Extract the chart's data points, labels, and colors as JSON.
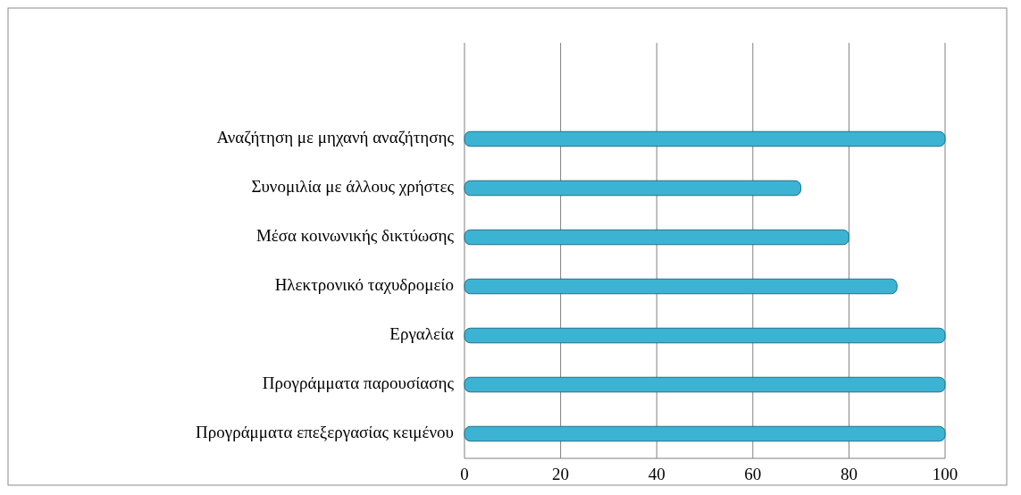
{
  "chart_data": {
    "type": "bar",
    "orientation": "horizontal",
    "categories": [
      "Αναζήτηση με μηχανή αναζήτησης",
      "Συνομιλία με άλλους χρήστες",
      "Μέσα κοινωνικής δικτύωσης",
      "Ηλεκτρονικό ταχυδρομείο",
      "Εργαλεία",
      "Προγράμματα παρουσίασης",
      "Προγράμματα επεξεργασίας κειμένου"
    ],
    "values": [
      100,
      70,
      80,
      90,
      100,
      100,
      100
    ],
    "color": "#3cb3d3",
    "xlim": [
      0,
      100
    ],
    "xticks": [
      0,
      20,
      40,
      60,
      80,
      100
    ],
    "grid": "x"
  }
}
